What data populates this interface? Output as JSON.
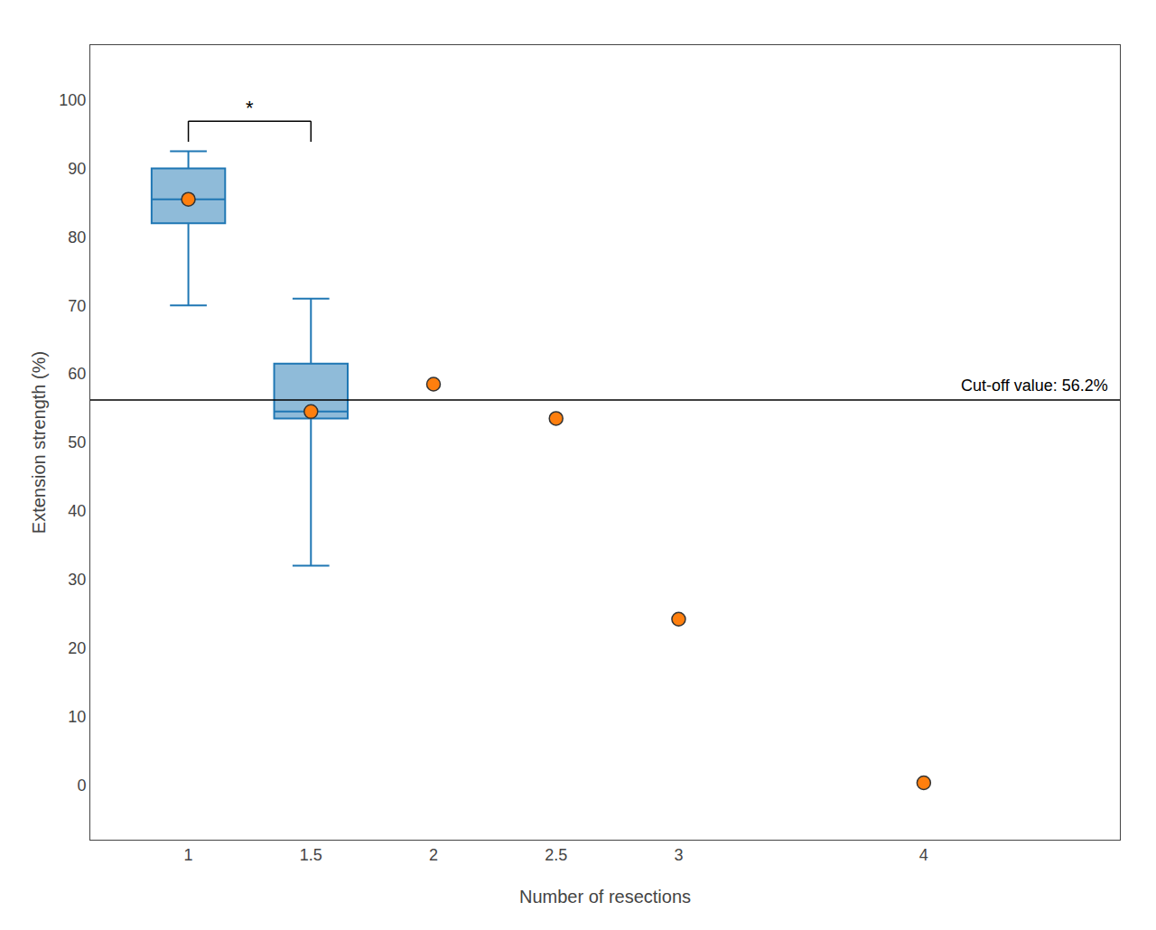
{
  "chart_data": {
    "type": "box",
    "xlabel": "Number of resections",
    "ylabel": "Extension strength (%)",
    "xlim": [
      0.6,
      4.8
    ],
    "ylim": [
      -8,
      108
    ],
    "xticks": [
      1,
      1.5,
      2,
      2.5,
      3,
      4
    ],
    "yticks": [
      0,
      10,
      20,
      30,
      40,
      50,
      60,
      70,
      80,
      90,
      100
    ],
    "grid": false,
    "boxes": [
      {
        "x": 1,
        "q1": 82.0,
        "median": 85.5,
        "q3": 90.0,
        "whisker_low": 70.0,
        "whisker_high": 92.5
      },
      {
        "x": 1.5,
        "q1": 53.5,
        "median": 54.5,
        "q3": 61.5,
        "whisker_low": 32.0,
        "whisker_high": 71.0
      }
    ],
    "points": {
      "x": [
        1,
        1.5,
        2,
        2.5,
        3,
        4
      ],
      "values": [
        85.5,
        54.5,
        58.5,
        53.5,
        24.2,
        0.3
      ]
    },
    "reference_line": {
      "value": 56.2,
      "label": "Cut-off value: 56.2%"
    },
    "significance": {
      "x1": 1,
      "x2": 1.5,
      "label": "*"
    }
  }
}
